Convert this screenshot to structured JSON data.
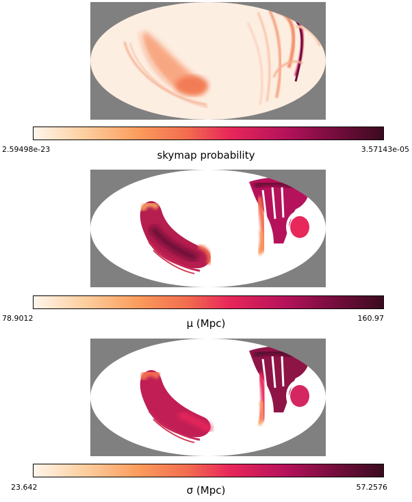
{
  "colormap": {
    "name": "RdPu-like (Hot Pink)",
    "stops": [
      "#fff5eb",
      "#fdd0a2",
      "#fb9c5c",
      "#f26c4f",
      "#e8275a",
      "#b5125b",
      "#6d0c39",
      "#3b0b1f"
    ]
  },
  "panels": [
    {
      "kind": "skymap",
      "colorbar_min": "2.59498e-23",
      "colorbar_max": "3.57143e-05",
      "colorbar_label": "skymap probability"
    },
    {
      "kind": "mu",
      "colorbar_min": "78.9012",
      "colorbar_max": "160.97",
      "colorbar_label": "μ (Mpc)"
    },
    {
      "kind": "sigma",
      "colorbar_min": "23.642",
      "colorbar_max": "57.2576",
      "colorbar_label": "σ (Mpc)"
    }
  ],
  "chart_data": [
    {
      "type": "heatmap",
      "projection": "mollweide",
      "title": "",
      "colorbar_range": [
        2.59498e-23,
        3.57143e-05
      ],
      "colorbar_label": "skymap probability",
      "description_of_regions": "two arcs of elevated probability: western arc (moderate) and eastern narrow arcs (peak)"
    },
    {
      "type": "heatmap",
      "projection": "mollweide",
      "title": "",
      "colorbar_range": [
        78.9012,
        160.97
      ],
      "colorbar_label": "μ (Mpc)"
    },
    {
      "type": "heatmap",
      "projection": "mollweide",
      "title": "",
      "colorbar_range": [
        23.642,
        57.2576
      ],
      "colorbar_label": "σ (Mpc)"
    }
  ]
}
